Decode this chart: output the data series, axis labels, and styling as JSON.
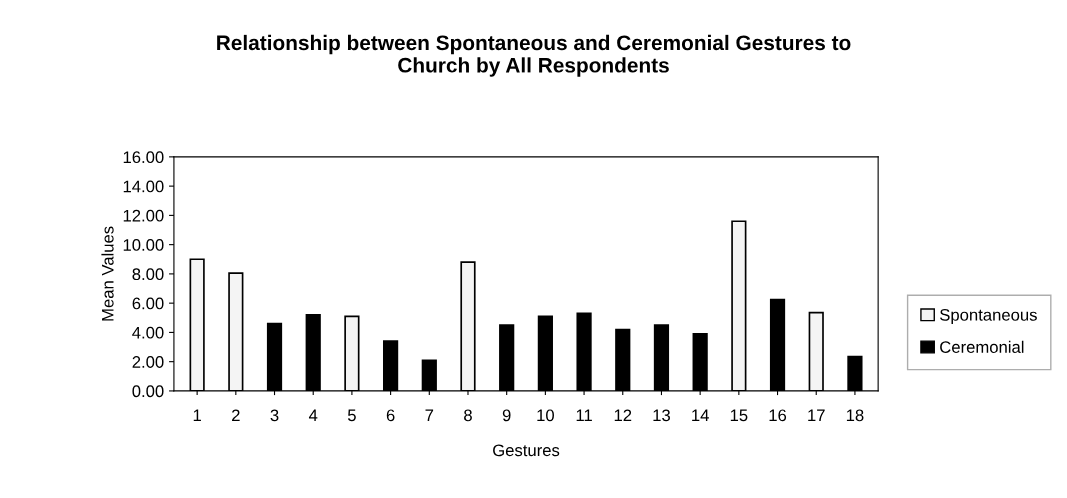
{
  "chart_data": {
    "type": "bar",
    "title": "Relationship between Spontaneous and Ceremonial Gestures to\nChurch by All Respondents",
    "xlabel": "Gestures",
    "ylabel": "Mean Values",
    "categories": [
      "1",
      "2",
      "3",
      "4",
      "5",
      "6",
      "7",
      "8",
      "9",
      "10",
      "11",
      "12",
      "13",
      "14",
      "15",
      "16",
      "17",
      "18"
    ],
    "series": [
      {
        "name": "Spontaneous",
        "color": "#f4f4f4",
        "values": [
          9.0,
          8.05,
          null,
          null,
          5.1,
          null,
          null,
          8.8,
          null,
          null,
          null,
          null,
          null,
          null,
          11.6,
          null,
          5.35,
          null
        ]
      },
      {
        "name": "Ceremonial",
        "color": "#000000",
        "values": [
          null,
          null,
          4.6,
          5.2,
          null,
          3.4,
          2.1,
          null,
          4.5,
          5.1,
          5.3,
          4.2,
          4.5,
          3.9,
          null,
          6.25,
          null,
          2.35
        ]
      }
    ],
    "ylim": [
      0,
      16
    ],
    "yticks": [
      {
        "value": 0,
        "label": "0.00"
      },
      {
        "value": 2,
        "label": "2.00"
      },
      {
        "value": 4,
        "label": "4.00"
      },
      {
        "value": 6,
        "label": "6.00"
      },
      {
        "value": 8,
        "label": "8.00"
      },
      {
        "value": 10,
        "label": "10.00"
      },
      {
        "value": 12,
        "label": "12.00"
      },
      {
        "value": 14,
        "label": "14.00"
      },
      {
        "value": 16,
        "label": "16.00"
      }
    ],
    "grid": false,
    "legend": "right"
  }
}
